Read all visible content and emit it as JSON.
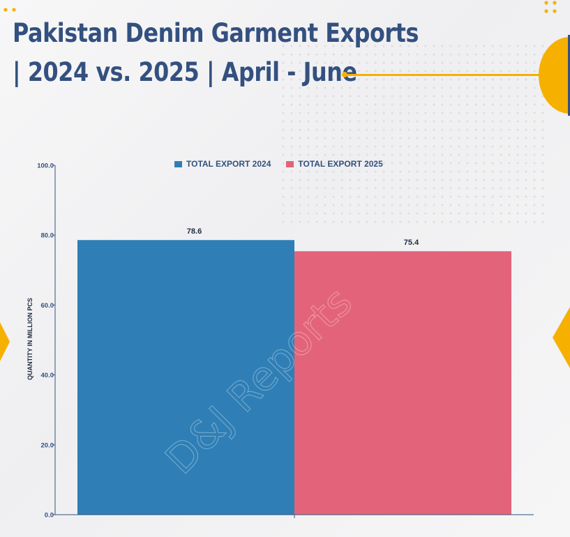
{
  "title": {
    "line1": "Pakistan Denim Garment Exports",
    "line2": "| 2024 vs. 2025 | April - June"
  },
  "watermark": "D&J Reports",
  "colors": {
    "title": "#33507f",
    "accent": "#f6b000",
    "series_2024": "#2f7fb6",
    "series_2025": "#e3647a"
  },
  "chart_data": {
    "type": "bar",
    "categories": [
      ""
    ],
    "series": [
      {
        "name": "TOTAL EXPORT 2024",
        "values": [
          78.6
        ],
        "color": "#2f7fb6"
      },
      {
        "name": "TOTAL EXPORT 2025",
        "values": [
          75.4
        ],
        "color": "#e3647a"
      }
    ],
    "data_labels": [
      "78.6",
      "75.4"
    ],
    "ylabel": "QUANTITY IN MILLION PCS",
    "xlabel": "",
    "ylim": [
      0,
      100
    ],
    "yticks": [
      "0.0",
      "20.0",
      "40.0",
      "60.0",
      "80.0",
      "100.0"
    ],
    "legend": "top-center",
    "grid": false
  }
}
